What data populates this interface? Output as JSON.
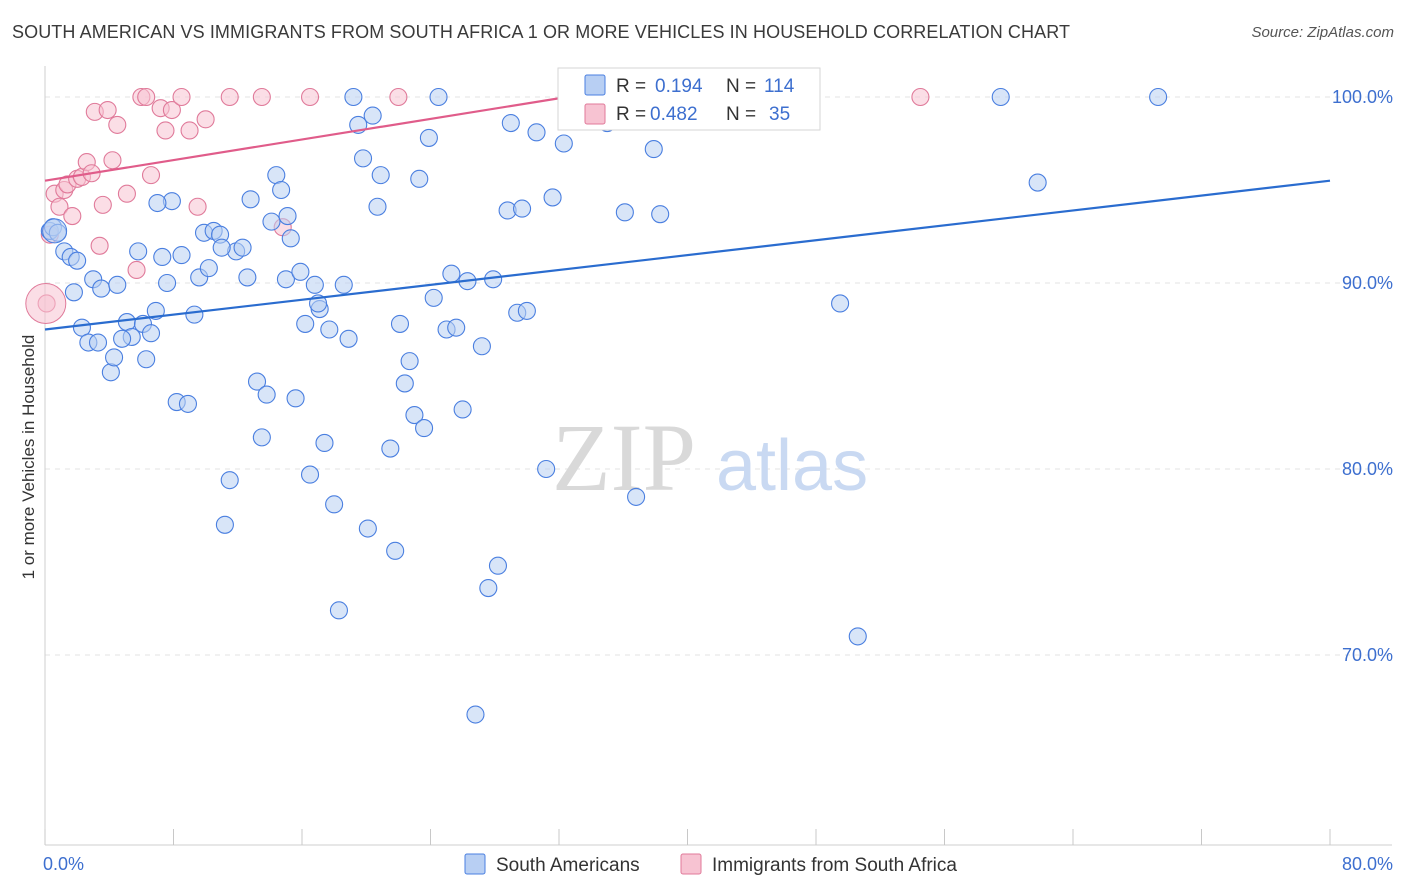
{
  "title": "SOUTH AMERICAN VS IMMIGRANTS FROM SOUTH AFRICA 1 OR MORE VEHICLES IN HOUSEHOLD CORRELATION CHART",
  "source": "Source: ZipAtlas.com",
  "watermark": {
    "zip": "ZIP",
    "atlas": "atlas"
  },
  "colors": {
    "blue": "#4a7fe0",
    "blue_fill": "#b8cff3",
    "blue_line": "#2a6ccf",
    "pink": "#e07a9a",
    "pink_fill": "#f7c3d2",
    "pink_line": "#e05c8a",
    "grid": "#e3e3e3",
    "tick_label": "#3d6fcf"
  },
  "legend": {
    "rows": [
      {
        "r_label": "R =",
        "r_value": "0.194",
        "n_label": "N =",
        "n_value": "114"
      },
      {
        "r_label": "R =",
        "r_value": "0.482",
        "n_label": "N =",
        "n_value": "35"
      }
    ]
  },
  "chart_data": {
    "type": "scatter",
    "title": "SOUTH AMERICAN VS IMMIGRANTS FROM SOUTH AFRICA 1 OR MORE VEHICLES IN HOUSEHOLD CORRELATION CHART",
    "xlabel": "",
    "ylabel": "1 or more Vehicles in Household",
    "xlim": [
      0,
      80
    ],
    "ylim": [
      61,
      101.5
    ],
    "x_tick_labels": [
      "0.0%",
      "80.0%"
    ],
    "y_ticks": [
      70,
      80,
      90,
      100
    ],
    "y_tick_labels": [
      "70.0%",
      "80.0%",
      "90.0%",
      "100.0%"
    ],
    "grid": true,
    "legend_position": "bottom",
    "series": [
      {
        "name": "South Americans",
        "color": "#4a7fe0",
        "trend": {
          "x": [
            0,
            80
          ],
          "y": [
            87.5,
            95.5
          ]
        },
        "points": [
          [
            0.3,
            92.8
          ],
          [
            0.5,
            93.0
          ],
          [
            0.8,
            92.7
          ],
          [
            1.2,
            91.7
          ],
          [
            1.6,
            91.4
          ],
          [
            1.8,
            89.5
          ],
          [
            2.3,
            87.6
          ],
          [
            2.7,
            86.8
          ],
          [
            3.0,
            90.2
          ],
          [
            3.3,
            86.8
          ],
          [
            3.5,
            89.7
          ],
          [
            4.1,
            85.2
          ],
          [
            4.3,
            86.0
          ],
          [
            4.5,
            89.9
          ],
          [
            5.1,
            87.9
          ],
          [
            5.4,
            87.1
          ],
          [
            5.8,
            91.7
          ],
          [
            6.1,
            87.8
          ],
          [
            6.3,
            85.9
          ],
          [
            6.6,
            87.3
          ],
          [
            6.9,
            88.5
          ],
          [
            7.3,
            91.4
          ],
          [
            7.6,
            90.0
          ],
          [
            7.9,
            94.4
          ],
          [
            8.2,
            83.6
          ],
          [
            8.5,
            91.5
          ],
          [
            8.9,
            83.5
          ],
          [
            9.3,
            88.3
          ],
          [
            9.6,
            90.3
          ],
          [
            9.9,
            92.7
          ],
          [
            10.2,
            90.8
          ],
          [
            10.5,
            92.8
          ],
          [
            10.9,
            92.6
          ],
          [
            11.2,
            77.0
          ],
          [
            11.5,
            79.4
          ],
          [
            11.9,
            91.7
          ],
          [
            12.3,
            91.9
          ],
          [
            12.6,
            90.3
          ],
          [
            12.8,
            94.5
          ],
          [
            13.2,
            84.7
          ],
          [
            13.5,
            81.7
          ],
          [
            13.8,
            84.0
          ],
          [
            14.1,
            93.3
          ],
          [
            14.4,
            95.8
          ],
          [
            14.7,
            95.0
          ],
          [
            15.0,
            90.2
          ],
          [
            15.3,
            92.4
          ],
          [
            15.6,
            83.8
          ],
          [
            15.9,
            90.6
          ],
          [
            16.2,
            87.8
          ],
          [
            16.5,
            79.7
          ],
          [
            16.8,
            89.9
          ],
          [
            17.1,
            88.6
          ],
          [
            17.4,
            81.4
          ],
          [
            17.7,
            87.5
          ],
          [
            18.0,
            78.1
          ],
          [
            18.3,
            72.4
          ],
          [
            18.6,
            89.9
          ],
          [
            18.9,
            87.0
          ],
          [
            19.2,
            100.0
          ],
          [
            19.5,
            98.5
          ],
          [
            19.8,
            96.7
          ],
          [
            20.1,
            76.8
          ],
          [
            20.4,
            99.0
          ],
          [
            20.7,
            94.1
          ],
          [
            20.9,
            95.8
          ],
          [
            21.5,
            81.1
          ],
          [
            21.8,
            75.6
          ],
          [
            22.1,
            87.8
          ],
          [
            22.4,
            84.6
          ],
          [
            22.7,
            85.8
          ],
          [
            23.0,
            82.9
          ],
          [
            23.3,
            95.6
          ],
          [
            23.6,
            82.2
          ],
          [
            23.9,
            97.8
          ],
          [
            24.2,
            89.2
          ],
          [
            24.5,
            100.0
          ],
          [
            25.0,
            87.5
          ],
          [
            25.3,
            90.5
          ],
          [
            25.6,
            87.6
          ],
          [
            26.0,
            83.2
          ],
          [
            26.3,
            90.1
          ],
          [
            26.8,
            66.8
          ],
          [
            27.2,
            86.6
          ],
          [
            27.6,
            73.6
          ],
          [
            27.9,
            90.2
          ],
          [
            28.2,
            74.8
          ],
          [
            28.8,
            93.9
          ],
          [
            29.0,
            98.6
          ],
          [
            29.4,
            88.4
          ],
          [
            29.7,
            94.0
          ],
          [
            30.0,
            88.5
          ],
          [
            30.6,
            98.1
          ],
          [
            31.2,
            80.0
          ],
          [
            31.6,
            94.6
          ],
          [
            32.3,
            97.5
          ],
          [
            33.0,
            100.0
          ],
          [
            35.0,
            98.6
          ],
          [
            36.1,
            93.8
          ],
          [
            36.8,
            78.5
          ],
          [
            37.3,
            100.0
          ],
          [
            37.9,
            97.2
          ],
          [
            38.3,
            93.7
          ],
          [
            49.5,
            88.9
          ],
          [
            50.6,
            71.0
          ],
          [
            59.5,
            100.0
          ],
          [
            61.8,
            95.4
          ],
          [
            69.3,
            100.0
          ],
          [
            2.0,
            91.2
          ],
          [
            4.8,
            87.0
          ],
          [
            7.0,
            94.3
          ],
          [
            11.0,
            91.9
          ],
          [
            15.1,
            93.6
          ],
          [
            17.0,
            88.9
          ]
        ]
      },
      {
        "name": "Immigrants from South Africa",
        "color": "#e07a9a",
        "trend": {
          "x": [
            0,
            32.5
          ],
          "y": [
            95.5,
            100.0
          ]
        },
        "points": [
          [
            0.1,
            88.9
          ],
          [
            0.3,
            92.6
          ],
          [
            0.6,
            94.8
          ],
          [
            0.9,
            94.1
          ],
          [
            1.2,
            95.0
          ],
          [
            1.4,
            95.3
          ],
          [
            1.7,
            93.6
          ],
          [
            2.0,
            95.6
          ],
          [
            2.3,
            95.7
          ],
          [
            2.6,
            96.5
          ],
          [
            2.9,
            95.9
          ],
          [
            3.1,
            99.2
          ],
          [
            3.4,
            92.0
          ],
          [
            3.6,
            94.2
          ],
          [
            3.9,
            99.3
          ],
          [
            4.2,
            96.6
          ],
          [
            4.5,
            98.5
          ],
          [
            5.1,
            94.8
          ],
          [
            5.7,
            90.7
          ],
          [
            6.0,
            100.0
          ],
          [
            6.3,
            100.0
          ],
          [
            6.6,
            95.8
          ],
          [
            7.2,
            99.4
          ],
          [
            7.5,
            98.2
          ],
          [
            7.9,
            99.3
          ],
          [
            8.5,
            100.0
          ],
          [
            9.0,
            98.2
          ],
          [
            9.5,
            94.1
          ],
          [
            10.0,
            98.8
          ],
          [
            11.5,
            100.0
          ],
          [
            13.5,
            100.0
          ],
          [
            14.8,
            93.0
          ],
          [
            16.5,
            100.0
          ],
          [
            22.0,
            100.0
          ],
          [
            54.5,
            100.0
          ]
        ]
      }
    ]
  }
}
